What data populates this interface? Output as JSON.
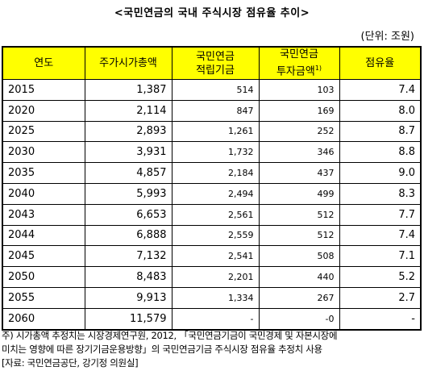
{
  "title": "<국민연금의 국내 주식시장 점유율 추이>",
  "unit": "(단위: 조원)",
  "table": {
    "header": [
      [
        "연도"
      ],
      [
        "주가시가총액"
      ],
      [
        "국민연금",
        "적립기금"
      ],
      [
        "국민연금",
        "투자금액"
      ],
      [
        "점유율"
      ]
    ],
    "header_note": "1)",
    "rows": [
      [
        "2015",
        "1,387",
        "514",
        "103",
        "7.4"
      ],
      [
        "2020",
        "2,114",
        "847",
        "169",
        "8.0"
      ],
      [
        "2025",
        "2,893",
        "1,261",
        "252",
        "8.7"
      ],
      [
        "2030",
        "3,931",
        "1,732",
        "346",
        "8.8"
      ],
      [
        "2035",
        "4,857",
        "2,184",
        "437",
        "9.0"
      ],
      [
        "2040",
        "5,993",
        "2,494",
        "499",
        "8.3"
      ],
      [
        "2043",
        "6,653",
        "2,561",
        "512",
        "7.7"
      ],
      [
        "2044",
        "6,888",
        "2,559",
        "512",
        "7.4"
      ],
      [
        "2045",
        "7,132",
        "2,541",
        "508",
        "7.1"
      ],
      [
        "2050",
        "8,483",
        "2,201",
        "440",
        "5.2"
      ],
      [
        "2055",
        "9,913",
        "1,334",
        "267",
        "2.7"
      ],
      [
        "2060",
        "11,579",
        "-",
        "-0",
        "-"
      ]
    ]
  },
  "footnotes": [
    "주) 시가총액 추정치는 시장경제연구원, 2012, 「국민연금기금이 국민경제 및 자본시장에",
    "미치는 영향에 따른 장기기금운용방향」의 국민연금기금 주식시장 점유율 추정치 사용",
    "[자료: 국민연금공단, 강기정 의원실]"
  ]
}
